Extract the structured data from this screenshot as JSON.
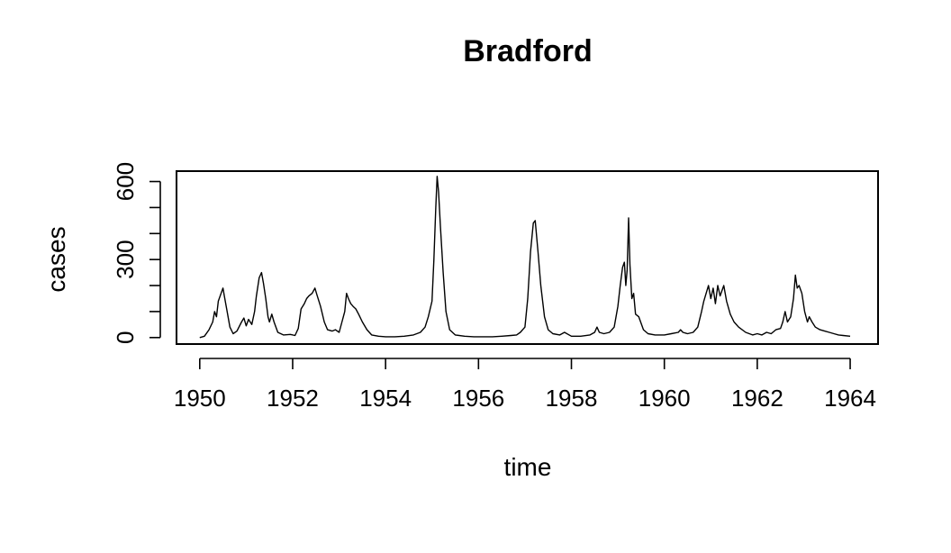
{
  "chart_data": {
    "type": "line",
    "title": "Bradford",
    "xlabel": "time",
    "ylabel": "cases",
    "xlim": [
      1949.5,
      1964.6
    ],
    "ylim": [
      -25,
      640
    ],
    "x_ticks": [
      1950,
      1952,
      1954,
      1956,
      1958,
      1960,
      1962,
      1964
    ],
    "x_tick_labels": [
      "1950",
      "1952",
      "1954",
      "1956",
      "1958",
      "1960",
      "1962",
      "1964"
    ],
    "y_ticks": [
      0,
      100,
      200,
      300,
      400,
      500,
      600
    ],
    "y_tick_labels": [
      "0",
      "",
      "",
      "300",
      "",
      "",
      "600"
    ],
    "grid": false,
    "legend": "none",
    "series": [
      {
        "values": [
          [
            1950.0,
            0
          ],
          [
            1950.1,
            5
          ],
          [
            1950.2,
            30
          ],
          [
            1950.28,
            60
          ],
          [
            1950.32,
            100
          ],
          [
            1950.36,
            80
          ],
          [
            1950.4,
            140
          ],
          [
            1950.46,
            170
          ],
          [
            1950.5,
            190
          ],
          [
            1950.53,
            160
          ],
          [
            1950.58,
            110
          ],
          [
            1950.65,
            40
          ],
          [
            1950.72,
            15
          ],
          [
            1950.8,
            25
          ],
          [
            1950.9,
            60
          ],
          [
            1950.95,
            75
          ],
          [
            1951.0,
            45
          ],
          [
            1951.05,
            70
          ],
          [
            1951.12,
            50
          ],
          [
            1951.18,
            100
          ],
          [
            1951.22,
            160
          ],
          [
            1951.28,
            230
          ],
          [
            1951.33,
            250
          ],
          [
            1951.37,
            210
          ],
          [
            1951.42,
            150
          ],
          [
            1951.47,
            80
          ],
          [
            1951.5,
            60
          ],
          [
            1951.55,
            90
          ],
          [
            1951.6,
            60
          ],
          [
            1951.68,
            20
          ],
          [
            1951.8,
            10
          ],
          [
            1951.95,
            12
          ],
          [
            1952.05,
            8
          ],
          [
            1952.12,
            35
          ],
          [
            1952.18,
            110
          ],
          [
            1952.25,
            130
          ],
          [
            1952.3,
            150
          ],
          [
            1952.35,
            160
          ],
          [
            1952.42,
            170
          ],
          [
            1952.48,
            190
          ],
          [
            1952.53,
            160
          ],
          [
            1952.6,
            120
          ],
          [
            1952.68,
            60
          ],
          [
            1952.75,
            30
          ],
          [
            1952.85,
            25
          ],
          [
            1952.92,
            30
          ],
          [
            1953.0,
            20
          ],
          [
            1953.06,
            60
          ],
          [
            1953.12,
            100
          ],
          [
            1953.16,
            170
          ],
          [
            1953.2,
            150
          ],
          [
            1953.25,
            130
          ],
          [
            1953.3,
            120
          ],
          [
            1953.36,
            110
          ],
          [
            1953.42,
            90
          ],
          [
            1953.5,
            60
          ],
          [
            1953.6,
            30
          ],
          [
            1953.7,
            10
          ],
          [
            1953.85,
            5
          ],
          [
            1954.0,
            3
          ],
          [
            1954.2,
            3
          ],
          [
            1954.4,
            5
          ],
          [
            1954.6,
            10
          ],
          [
            1954.75,
            20
          ],
          [
            1954.85,
            40
          ],
          [
            1954.92,
            80
          ],
          [
            1955.0,
            140
          ],
          [
            1955.04,
            300
          ],
          [
            1955.08,
            500
          ],
          [
            1955.11,
            620
          ],
          [
            1955.14,
            560
          ],
          [
            1955.18,
            430
          ],
          [
            1955.24,
            250
          ],
          [
            1955.3,
            100
          ],
          [
            1955.38,
            30
          ],
          [
            1955.5,
            10
          ],
          [
            1955.7,
            5
          ],
          [
            1955.9,
            3
          ],
          [
            1956.1,
            3
          ],
          [
            1956.3,
            3
          ],
          [
            1956.5,
            5
          ],
          [
            1956.7,
            8
          ],
          [
            1956.82,
            10
          ],
          [
            1956.9,
            20
          ],
          [
            1957.0,
            40
          ],
          [
            1957.06,
            150
          ],
          [
            1957.12,
            330
          ],
          [
            1957.18,
            440
          ],
          [
            1957.22,
            450
          ],
          [
            1957.28,
            330
          ],
          [
            1957.34,
            200
          ],
          [
            1957.42,
            80
          ],
          [
            1957.5,
            30
          ],
          [
            1957.6,
            15
          ],
          [
            1957.75,
            10
          ],
          [
            1957.85,
            20
          ],
          [
            1958.0,
            5
          ],
          [
            1958.2,
            5
          ],
          [
            1958.4,
            10
          ],
          [
            1958.5,
            20
          ],
          [
            1958.55,
            40
          ],
          [
            1958.6,
            20
          ],
          [
            1958.7,
            15
          ],
          [
            1958.82,
            20
          ],
          [
            1958.92,
            40
          ],
          [
            1959.0,
            120
          ],
          [
            1959.05,
            200
          ],
          [
            1959.1,
            270
          ],
          [
            1959.14,
            290
          ],
          [
            1959.17,
            200
          ],
          [
            1959.2,
            260
          ],
          [
            1959.23,
            460
          ],
          [
            1959.26,
            280
          ],
          [
            1959.3,
            150
          ],
          [
            1959.34,
            170
          ],
          [
            1959.38,
            90
          ],
          [
            1959.45,
            80
          ],
          [
            1959.55,
            30
          ],
          [
            1959.65,
            15
          ],
          [
            1959.8,
            10
          ],
          [
            1960.0,
            10
          ],
          [
            1960.15,
            15
          ],
          [
            1960.3,
            20
          ],
          [
            1960.35,
            30
          ],
          [
            1960.4,
            20
          ],
          [
            1960.5,
            15
          ],
          [
            1960.62,
            20
          ],
          [
            1960.72,
            40
          ],
          [
            1960.8,
            100
          ],
          [
            1960.85,
            140
          ],
          [
            1960.9,
            170
          ],
          [
            1960.95,
            200
          ],
          [
            1961.0,
            150
          ],
          [
            1961.05,
            190
          ],
          [
            1961.1,
            130
          ],
          [
            1961.15,
            200
          ],
          [
            1961.2,
            160
          ],
          [
            1961.28,
            200
          ],
          [
            1961.34,
            140
          ],
          [
            1961.42,
            90
          ],
          [
            1961.5,
            60
          ],
          [
            1961.6,
            40
          ],
          [
            1961.75,
            20
          ],
          [
            1961.9,
            10
          ],
          [
            1962.0,
            15
          ],
          [
            1962.1,
            10
          ],
          [
            1962.2,
            20
          ],
          [
            1962.3,
            15
          ],
          [
            1962.4,
            30
          ],
          [
            1962.5,
            35
          ],
          [
            1962.55,
            60
          ],
          [
            1962.6,
            100
          ],
          [
            1962.65,
            60
          ],
          [
            1962.72,
            80
          ],
          [
            1962.78,
            150
          ],
          [
            1962.82,
            240
          ],
          [
            1962.86,
            190
          ],
          [
            1962.9,
            200
          ],
          [
            1962.96,
            170
          ],
          [
            1963.02,
            100
          ],
          [
            1963.08,
            60
          ],
          [
            1963.12,
            80
          ],
          [
            1963.18,
            60
          ],
          [
            1963.25,
            40
          ],
          [
            1963.35,
            30
          ],
          [
            1963.45,
            25
          ],
          [
            1963.55,
            20
          ],
          [
            1963.65,
            15
          ],
          [
            1963.75,
            10
          ],
          [
            1963.85,
            8
          ],
          [
            1964.0,
            5
          ]
        ]
      }
    ]
  }
}
